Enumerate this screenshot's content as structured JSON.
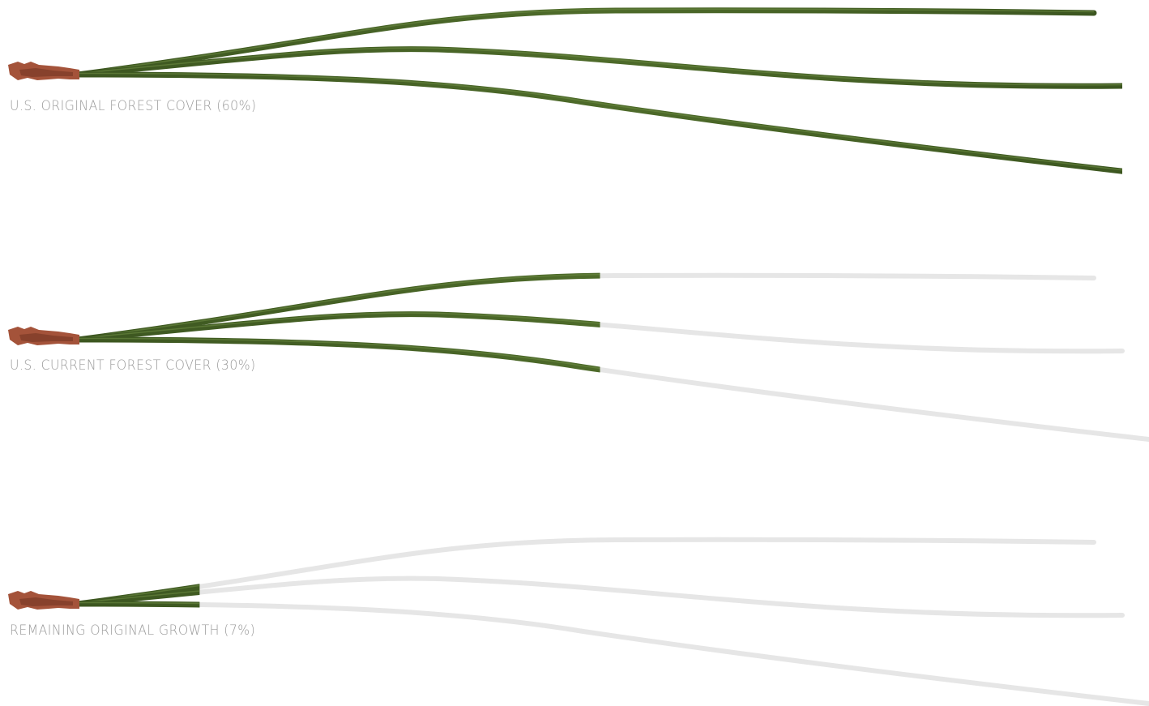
{
  "chart_data": {
    "type": "bar",
    "unit": "%",
    "categories": [
      "U.S. ORIGINAL FOREST COVER (60%)",
      "U.S. CURRENT FOREST COVER (30%)",
      "REMAINING ORIGINAL GROWTH (7%)"
    ],
    "values": [
      60,
      30,
      7
    ],
    "xlim": [
      0,
      60
    ],
    "colors": {
      "needle": "#4e6b2a",
      "needle_dark": "#3c5620",
      "ghost": "#e6e6e6",
      "sheath": "#a4533a",
      "caption": "#9a9a9a"
    }
  }
}
